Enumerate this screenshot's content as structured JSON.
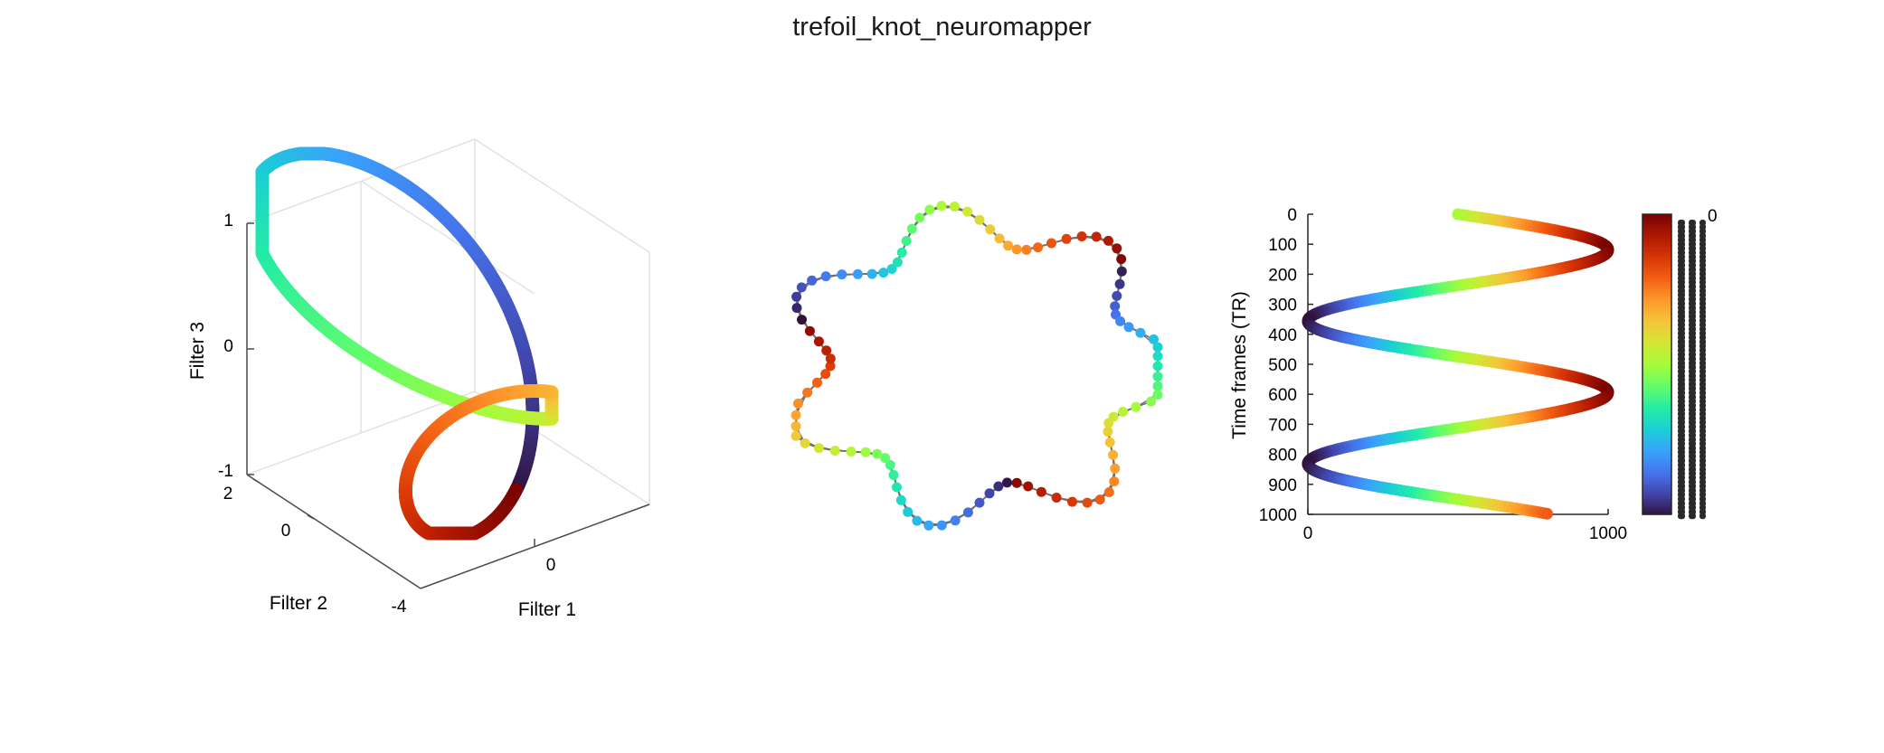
{
  "figure_title": "trefoil_knot_neuromapper",
  "chart_data": [
    {
      "type": "scatter",
      "subtype": "3d-trefoil-knot",
      "title": "",
      "xlabel": "Filter 1",
      "ylabel": "Filter 2",
      "zlabel": "Filter 3",
      "x_ticks": [
        "0"
      ],
      "y_ticks": [
        "2",
        "0",
        "-4"
      ],
      "z_ticks": [
        "1",
        "0",
        "-1"
      ],
      "grid": true,
      "colormap": "turbo",
      "n_points": 1000
    },
    {
      "type": "graph",
      "title": "",
      "description_of_marks": "neuromapper shape graph",
      "n_nodes": 100,
      "colormap": "turbo"
    },
    {
      "type": "line",
      "title": "",
      "xlabel": "",
      "ylabel": "Time frames (TR)",
      "xlim": [
        0,
        1000
      ],
      "ylim": [
        0,
        1000
      ],
      "y_reversed": true,
      "x_ticks": [
        "0",
        "1000"
      ],
      "y_ticks": [
        "0",
        "100",
        "200",
        "300",
        "400",
        "500",
        "600",
        "700",
        "800",
        "900",
        "1000"
      ],
      "colorbar": {
        "colormap": "turbo",
        "tick_label_fragment": "0"
      }
    }
  ],
  "colors": {
    "axis": "#262626",
    "grid": "#e2e2e2",
    "edge": "#707070",
    "turbo": [
      "#30123b",
      "#4145ab",
      "#4675ed",
      "#39a2fc",
      "#1bcfd4",
      "#24eca6",
      "#61fc6c",
      "#a4fc3b",
      "#d1e834",
      "#f3c63a",
      "#fe9b2d",
      "#f36315",
      "#d93806",
      "#b11901",
      "#7a0403"
    ]
  }
}
